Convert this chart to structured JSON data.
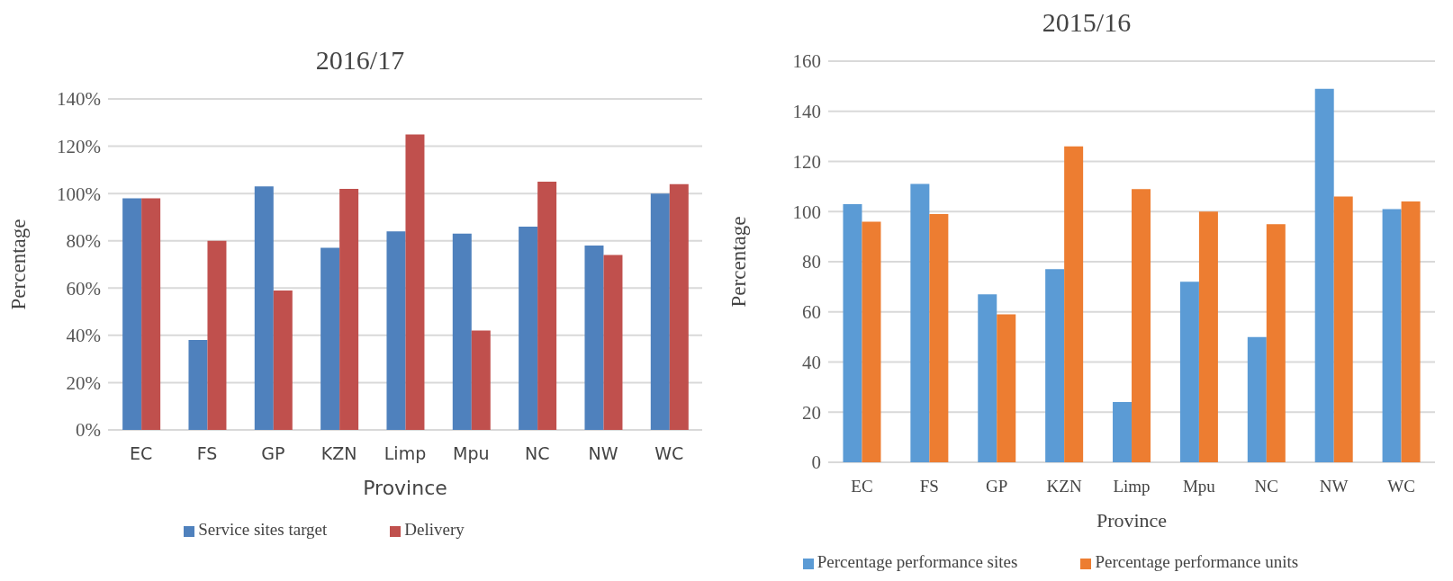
{
  "chart_data": [
    {
      "type": "bar",
      "title": "2016/17",
      "xlabel": "Province",
      "ylabel": "Percentage",
      "categories": [
        "EC",
        "FS",
        "GP",
        "KZN",
        "Limp",
        "Mpu",
        "NC",
        "NW",
        "WC"
      ],
      "series": [
        {
          "name": "Service sites target",
          "color": "#4f81bd",
          "values": [
            98,
            38,
            103,
            77,
            84,
            83,
            86,
            78,
            100
          ]
        },
        {
          "name": "Delivery",
          "color": "#c0504d",
          "values": [
            98,
            80,
            59,
            102,
            125,
            42,
            105,
            74,
            104
          ]
        }
      ],
      "ylim": [
        0,
        140
      ],
      "yticks": [
        {
          "value": 0,
          "label": "0%"
        },
        {
          "value": 20,
          "label": "20%"
        },
        {
          "value": 40,
          "label": "40%"
        },
        {
          "value": 60,
          "label": "60%"
        },
        {
          "value": 80,
          "label": "80%"
        },
        {
          "value": 100,
          "label": "100%"
        },
        {
          "value": 120,
          "label": "120%"
        },
        {
          "value": 140,
          "label": "140%"
        }
      ],
      "grid": "y",
      "legend": "bottom"
    },
    {
      "type": "bar",
      "title": "2015/16",
      "xlabel": "Province",
      "ylabel": "Percentage",
      "categories": [
        "EC",
        "FS",
        "GP",
        "KZN",
        "Limp",
        "Mpu",
        "NC",
        "NW",
        "WC"
      ],
      "series": [
        {
          "name": "Percentage performance sites",
          "color": "#5b9bd5",
          "values": [
            103,
            111,
            67,
            77,
            24,
            72,
            50,
            149,
            101
          ]
        },
        {
          "name": "Percentage performance units",
          "color": "#ed7d31",
          "values": [
            96,
            99,
            59,
            126,
            109,
            100,
            95,
            106,
            104
          ]
        }
      ],
      "ylim": [
        0,
        160
      ],
      "yticks": [
        0,
        20,
        40,
        60,
        80,
        100,
        120,
        140,
        160
      ],
      "grid": "y",
      "legend": "bottom"
    }
  ]
}
